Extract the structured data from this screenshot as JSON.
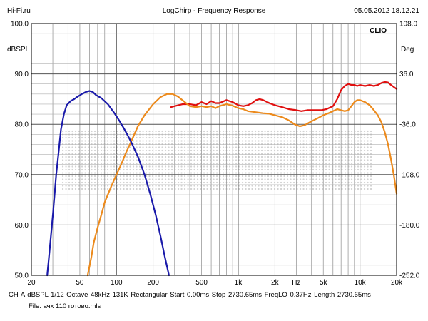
{
  "header": {
    "left": "Hi-Fi.ru",
    "center": "LogChirp - Frequency Response",
    "right": "05.05.2012 18.12.21"
  },
  "chart_data": {
    "type": "line",
    "title": "LogChirp - Frequency Response",
    "brand": "CLIO",
    "xscale": "log",
    "xlim": [
      20,
      20000
    ],
    "ylim_left": [
      50,
      100
    ],
    "ylim_right": [
      -252,
      108
    ],
    "ylabel_left": "dBSPL",
    "ylabel_right": "Deg",
    "grid": true,
    "x_ticks": [
      {
        "v": 20,
        "label": "20"
      },
      {
        "v": 50,
        "label": "50"
      },
      {
        "v": 100,
        "label": "100"
      },
      {
        "v": 200,
        "label": "200"
      },
      {
        "v": 500,
        "label": "500"
      },
      {
        "v": 1000,
        "label": "1k"
      },
      {
        "v": 2000,
        "label": "2k"
      },
      {
        "v": 3000,
        "label": "Hz"
      },
      {
        "v": 5000,
        "label": "5k"
      },
      {
        "v": 10000,
        "label": "10k"
      },
      {
        "v": 20000,
        "label": "20k"
      }
    ],
    "y_ticks_left": [
      "100.0",
      "90.0",
      "80.0",
      "70.0",
      "60.0",
      "50.0"
    ],
    "y_ticks_right": [
      "108.0",
      "36.0",
      "-36.0",
      "-108.0",
      "-180.0",
      "-252.0"
    ],
    "series": [
      {
        "color": "#e01010",
        "points": [
          [
            280,
            83.4
          ],
          [
            300,
            83.6
          ],
          [
            350,
            84.0
          ],
          [
            400,
            84.0
          ],
          [
            450,
            83.8
          ],
          [
            500,
            84.4
          ],
          [
            550,
            84.0
          ],
          [
            600,
            84.6
          ],
          [
            650,
            84.2
          ],
          [
            700,
            84.2
          ],
          [
            800,
            84.8
          ],
          [
            900,
            84.4
          ],
          [
            1000,
            83.8
          ],
          [
            1100,
            83.6
          ],
          [
            1200,
            83.8
          ],
          [
            1300,
            84.2
          ],
          [
            1400,
            84.8
          ],
          [
            1500,
            85.0
          ],
          [
            1600,
            84.8
          ],
          [
            1800,
            84.2
          ],
          [
            2000,
            83.8
          ],
          [
            2300,
            83.4
          ],
          [
            2600,
            83.0
          ],
          [
            3000,
            82.8
          ],
          [
            3300,
            82.6
          ],
          [
            3700,
            82.8
          ],
          [
            4200,
            82.8
          ],
          [
            4800,
            82.8
          ],
          [
            5300,
            83.0
          ],
          [
            6000,
            83.6
          ],
          [
            6500,
            85.0
          ],
          [
            7000,
            86.8
          ],
          [
            7500,
            87.6
          ],
          [
            8000,
            88.0
          ],
          [
            8500,
            87.8
          ],
          [
            9000,
            87.8
          ],
          [
            9500,
            87.6
          ],
          [
            10000,
            87.8
          ],
          [
            11000,
            87.6
          ],
          [
            12000,
            87.8
          ],
          [
            13000,
            87.6
          ],
          [
            14000,
            87.8
          ],
          [
            15000,
            88.2
          ],
          [
            16000,
            88.4
          ],
          [
            17000,
            88.3
          ],
          [
            18000,
            87.8
          ],
          [
            19000,
            87.4
          ],
          [
            20000,
            87.0
          ]
        ]
      },
      {
        "color": "#ec8a1c",
        "points": [
          [
            58,
            50.0
          ],
          [
            62,
            53.5
          ],
          [
            65,
            56.5
          ],
          [
            70,
            59.5
          ],
          [
            75,
            62.0
          ],
          [
            80,
            64.5
          ],
          [
            90,
            67.5
          ],
          [
            100,
            70.0
          ],
          [
            110,
            72.2
          ],
          [
            120,
            74.4
          ],
          [
            130,
            76.2
          ],
          [
            150,
            79.6
          ],
          [
            170,
            81.8
          ],
          [
            200,
            84.0
          ],
          [
            230,
            85.4
          ],
          [
            260,
            86.0
          ],
          [
            290,
            86.0
          ],
          [
            320,
            85.5
          ],
          [
            360,
            84.5
          ],
          [
            400,
            83.6
          ],
          [
            450,
            83.4
          ],
          [
            500,
            83.6
          ],
          [
            550,
            83.4
          ],
          [
            600,
            83.6
          ],
          [
            650,
            83.2
          ],
          [
            700,
            83.6
          ],
          [
            800,
            84.0
          ],
          [
            900,
            83.7
          ],
          [
            1000,
            83.2
          ],
          [
            1100,
            83.0
          ],
          [
            1200,
            82.6
          ],
          [
            1400,
            82.4
          ],
          [
            1600,
            82.2
          ],
          [
            1800,
            82.1
          ],
          [
            2000,
            81.8
          ],
          [
            2300,
            81.4
          ],
          [
            2600,
            80.8
          ],
          [
            2900,
            80.0
          ],
          [
            3200,
            79.6
          ],
          [
            3500,
            79.8
          ],
          [
            4000,
            80.6
          ],
          [
            4500,
            81.2
          ],
          [
            5000,
            81.8
          ],
          [
            5500,
            82.2
          ],
          [
            6000,
            82.6
          ],
          [
            6500,
            83.0
          ],
          [
            7000,
            82.8
          ],
          [
            7500,
            82.6
          ],
          [
            8000,
            82.8
          ],
          [
            8500,
            83.6
          ],
          [
            9000,
            84.4
          ],
          [
            9500,
            84.8
          ],
          [
            10000,
            84.8
          ],
          [
            11000,
            84.4
          ],
          [
            12000,
            83.8
          ],
          [
            13000,
            82.8
          ],
          [
            14000,
            81.8
          ],
          [
            15000,
            80.4
          ],
          [
            16000,
            78.4
          ],
          [
            17000,
            76.0
          ],
          [
            18000,
            73.0
          ],
          [
            19000,
            69.8
          ],
          [
            20000,
            66.2
          ]
        ]
      },
      {
        "color": "#1a1aaa",
        "points": [
          [
            27,
            50.0
          ],
          [
            28,
            54.0
          ],
          [
            29,
            58.0
          ],
          [
            30,
            62.0
          ],
          [
            31,
            66.0
          ],
          [
            32,
            70.0
          ],
          [
            33,
            73.0
          ],
          [
            34,
            76.0
          ],
          [
            35,
            79.0
          ],
          [
            37,
            82.0
          ],
          [
            39,
            83.8
          ],
          [
            42,
            84.6
          ],
          [
            45,
            85.0
          ],
          [
            48,
            85.5
          ],
          [
            52,
            86.0
          ],
          [
            56,
            86.4
          ],
          [
            60,
            86.6
          ],
          [
            64,
            86.4
          ],
          [
            68,
            85.8
          ],
          [
            75,
            85.2
          ],
          [
            85,
            84.0
          ],
          [
            95,
            82.4
          ],
          [
            105,
            80.8
          ],
          [
            115,
            79.2
          ],
          [
            125,
            77.6
          ],
          [
            135,
            76.0
          ],
          [
            150,
            73.6
          ],
          [
            170,
            70.0
          ],
          [
            190,
            66.0
          ],
          [
            210,
            62.0
          ],
          [
            230,
            57.8
          ],
          [
            250,
            53.6
          ],
          [
            270,
            50.0
          ]
        ]
      }
    ]
  },
  "footer": {
    "info_line": "CH A   dBSPL   1/12 Octave   48kHz   131K   Rectangular   Start 0.00ms   Stop 2730.65ms   FreqLO 0.37Hz   Length 2730.65ms",
    "file_line": "File: ачх 110 готово.mls"
  }
}
